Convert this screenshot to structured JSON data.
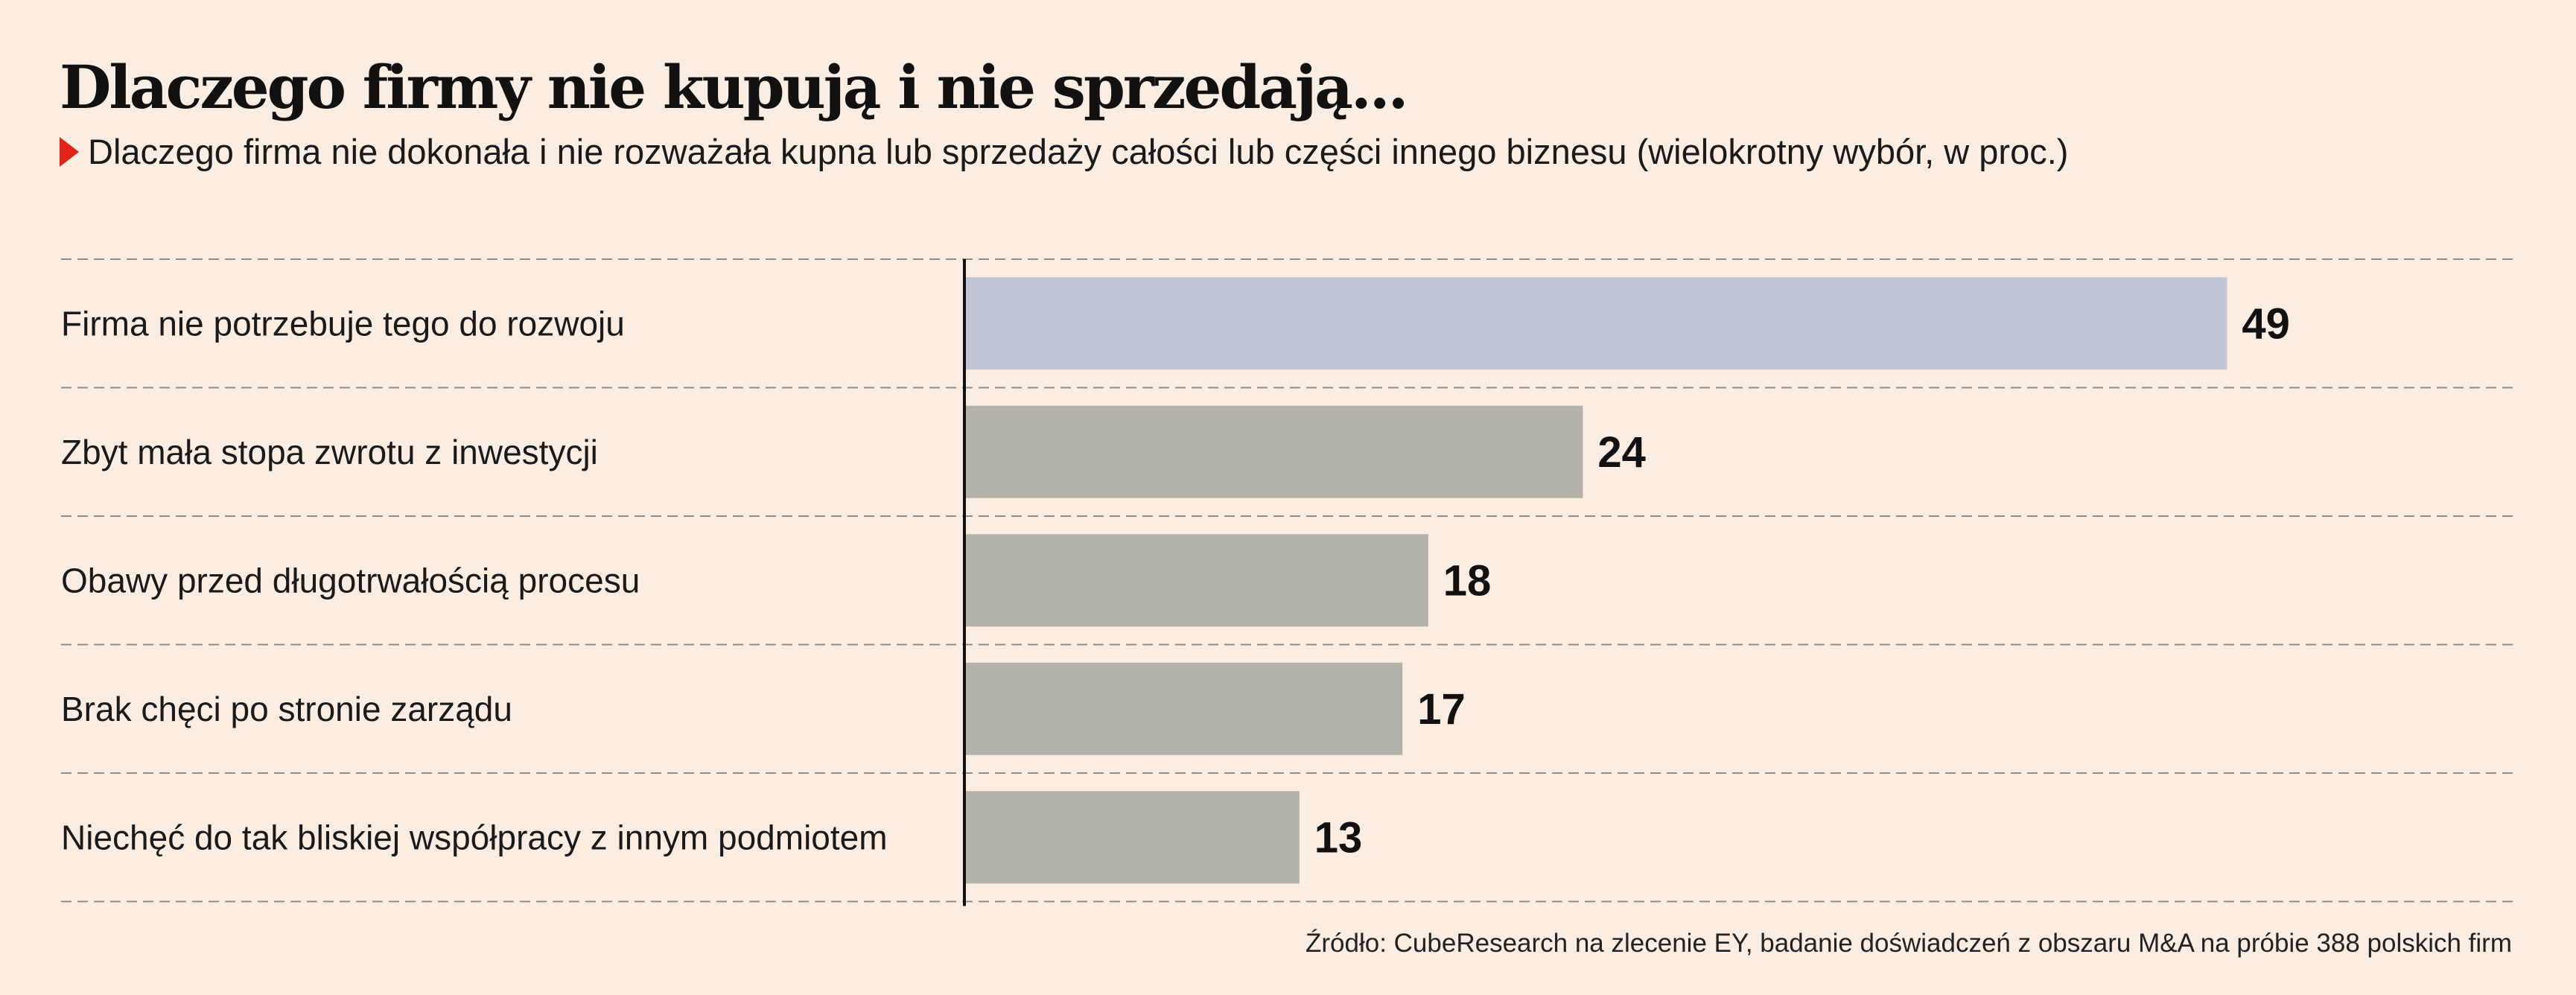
{
  "title": "Dlaczego firmy nie kupują i nie sprzedają...",
  "subtitle": "Dlaczego firma nie dokonała i nie rozważała kupna lub sprzedaży całości lub części innego biznesu (wielokrotny wybór, w proc.)",
  "source": "Źródło: CubeResearch na zlecenie EY, badanie doświadczeń z obszaru M&A na próbie 388 polskich firm",
  "colors": {
    "background": "#fbede2",
    "highlight_bar": "#c0c6d6",
    "bar": "#b3b2aa",
    "marker": "#e2231a"
  },
  "chart_data": {
    "type": "bar",
    "orientation": "horizontal",
    "title": "Dlaczego firmy nie kupują i nie sprzedają...",
    "subtitle": "Dlaczego firma nie dokonała i nie rozważała kupna lub sprzedaży całości lub części innego biznesu (wielokrotny wybór, w proc.)",
    "categories": [
      "Firma nie potrzebuje tego do rozwoju",
      "Zbyt mała stopa zwrotu z inwestycji",
      "Obawy przed długotrwałością procesu",
      "Brak chęci po stronie zarządu",
      "Niechęć do tak bliskiej współpracy z innym podmiotem"
    ],
    "values": [
      49,
      24,
      18,
      17,
      13
    ],
    "labels": [
      "49",
      "24",
      "18",
      "17",
      "13"
    ],
    "highlight_index": 0,
    "xlim": [
      0,
      50
    ],
    "grid": "dashed row separators",
    "unit": "proc."
  }
}
